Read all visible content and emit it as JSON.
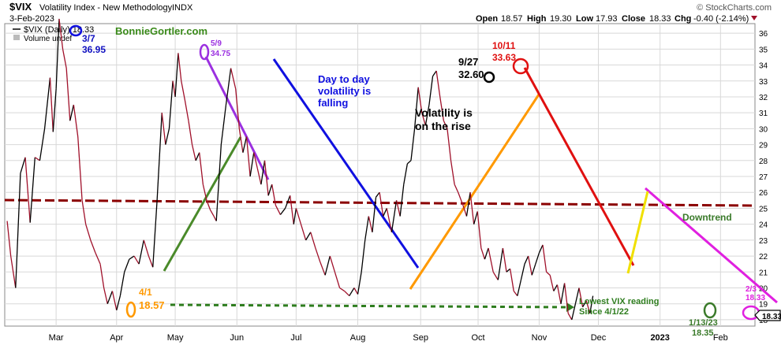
{
  "header": {
    "symbol": "$VIX",
    "name": "Volatility Index - New Methodology",
    "exchange": "INDX",
    "date": "3-Feb-2023",
    "watermark": "© StockCharts.com",
    "open_label": "Open",
    "open": "18.57",
    "high_label": "High",
    "high": "19.30",
    "low_label": "Low",
    "low": "17.93",
    "close_label": "Close",
    "close": "18.33",
    "chg_label": "Chg",
    "chg": "-0.40 (-2.14%)"
  },
  "legend": {
    "series": "$VIX (Daily) 18.33",
    "volume": "Volume undef"
  },
  "brand": "BonnieGortler.com",
  "colors": {
    "price_up": "#000000",
    "price_down": "#a0102a",
    "resistance": "#8b0000",
    "blue": "#1010e0",
    "red": "#e01010",
    "orange": "#ff9900",
    "green": "#4a8a2a",
    "purple": "#9b30e0",
    "magenta": "#e020e0",
    "yellow": "#f0e000",
    "dashed_green": "#2e7d1e"
  },
  "annotations": {
    "mar7_date": "3/7",
    "mar7_value": "36.95",
    "may9_date": "5/9",
    "may9_value": "34.75",
    "sep27_date": "9/27",
    "sep27_value": "32.60",
    "oct11_date": "10/11",
    "oct11_value": "33.63",
    "apr1_date": "4/1",
    "apr1_value": "18.57",
    "jan13_date": "1/13/23",
    "jan13_value": "18.35",
    "feb3_date": "2/3",
    "feb3_value": "18.33",
    "falling_line1": "Day to day",
    "falling_line2": "volatility is",
    "falling_line3": "falling",
    "rise_line1": "Volatility is",
    "rise_line2": "on the rise",
    "downtrend": "Downtrend",
    "lowest_line1": "Lowest VIX reading",
    "lowest_line2": "Since 4/1/22",
    "last_price": "18.33"
  },
  "chart_data": {
    "type": "line",
    "title": "$VIX Volatility Index - New Methodology INDX",
    "x_ticks": [
      "Mar",
      "Apr",
      "May",
      "Jun",
      "Jul",
      "Aug",
      "Sep",
      "Oct",
      "Nov",
      "Dec",
      "2023",
      "Feb"
    ],
    "x_tick_positions": [
      0.07,
      1.07,
      2.04,
      3.06,
      4.04,
      5.06,
      6.1,
      7.05,
      8.06,
      9.04,
      10.06,
      11.06
    ],
    "y_ticks": [
      18,
      19,
      20,
      21,
      22,
      23,
      24,
      25,
      26,
      27,
      28,
      29,
      30,
      31,
      32,
      33,
      34,
      35,
      36
    ],
    "ylim": [
      17.6,
      36.6
    ],
    "xlim": [
      -0.78,
      11.63
    ],
    "grid": true,
    "series": [
      {
        "name": "$VIX (Daily)",
        "points": [
          [
            -0.74,
            24.2
          ],
          [
            -0.68,
            22.0
          ],
          [
            -0.6,
            20.0
          ],
          [
            -0.52,
            27.2
          ],
          [
            -0.44,
            28.2
          ],
          [
            -0.36,
            24.1
          ],
          [
            -0.28,
            28.2
          ],
          [
            -0.2,
            28.0
          ],
          [
            -0.12,
            30.0
          ],
          [
            -0.03,
            33.2
          ],
          [
            0.02,
            29.8
          ],
          [
            0.07,
            32.5
          ],
          [
            0.12,
            36.9
          ],
          [
            0.18,
            35.0
          ],
          [
            0.24,
            33.8
          ],
          [
            0.3,
            30.5
          ],
          [
            0.36,
            31.5
          ],
          [
            0.43,
            29.5
          ],
          [
            0.5,
            25.5
          ],
          [
            0.56,
            24.0
          ],
          [
            0.64,
            23.0
          ],
          [
            0.72,
            22.2
          ],
          [
            0.8,
            21.5
          ],
          [
            0.86,
            20.0
          ],
          [
            0.92,
            19.0
          ],
          [
            1.0,
            19.8
          ],
          [
            1.07,
            18.6
          ],
          [
            1.13,
            19.5
          ],
          [
            1.2,
            21.0
          ],
          [
            1.28,
            21.8
          ],
          [
            1.36,
            22.0
          ],
          [
            1.44,
            21.5
          ],
          [
            1.52,
            23.0
          ],
          [
            1.6,
            22.0
          ],
          [
            1.67,
            21.3
          ],
          [
            1.74,
            25.5
          ],
          [
            1.82,
            31.0
          ],
          [
            1.88,
            29.0
          ],
          [
            1.94,
            30.0
          ],
          [
            2.0,
            33.0
          ],
          [
            2.04,
            32.0
          ],
          [
            2.09,
            34.75
          ],
          [
            2.14,
            33.0
          ],
          [
            2.2,
            31.8
          ],
          [
            2.26,
            30.5
          ],
          [
            2.32,
            29.0
          ],
          [
            2.38,
            28.0
          ],
          [
            2.44,
            28.5
          ],
          [
            2.5,
            26.5
          ],
          [
            2.56,
            25.5
          ],
          [
            2.62,
            24.9
          ],
          [
            2.68,
            24.5
          ],
          [
            2.72,
            24.2
          ],
          [
            2.8,
            29.0
          ],
          [
            2.88,
            31.5
          ],
          [
            2.96,
            33.8
          ],
          [
            3.04,
            32.5
          ],
          [
            3.1,
            30.0
          ],
          [
            3.16,
            28.5
          ],
          [
            3.22,
            29.5
          ],
          [
            3.28,
            27.0
          ],
          [
            3.34,
            28.5
          ],
          [
            3.4,
            27.5
          ],
          [
            3.46,
            26.5
          ],
          [
            3.52,
            28.0
          ],
          [
            3.58,
            25.8
          ],
          [
            3.64,
            26.5
          ],
          [
            3.7,
            25.2
          ],
          [
            3.78,
            24.6
          ],
          [
            3.86,
            25.0
          ],
          [
            3.94,
            25.8
          ],
          [
            4.0,
            24.0
          ],
          [
            4.04,
            25.0
          ],
          [
            4.12,
            24.0
          ],
          [
            4.2,
            23.0
          ],
          [
            4.28,
            23.5
          ],
          [
            4.36,
            22.5
          ],
          [
            4.44,
            21.6
          ],
          [
            4.52,
            20.8
          ],
          [
            4.6,
            22.0
          ],
          [
            4.68,
            21.0
          ],
          [
            4.76,
            20.0
          ],
          [
            4.84,
            19.8
          ],
          [
            4.92,
            19.5
          ],
          [
            5.0,
            20.0
          ],
          [
            5.06,
            19.6
          ],
          [
            5.12,
            21.0
          ],
          [
            5.18,
            23.0
          ],
          [
            5.24,
            24.5
          ],
          [
            5.3,
            23.5
          ],
          [
            5.36,
            25.7
          ],
          [
            5.42,
            26.0
          ],
          [
            5.48,
            24.5
          ],
          [
            5.54,
            25.0
          ],
          [
            5.62,
            23.5
          ],
          [
            5.7,
            25.5
          ],
          [
            5.76,
            24.5
          ],
          [
            5.82,
            26.5
          ],
          [
            5.88,
            27.8
          ],
          [
            5.94,
            28.0
          ],
          [
            6.0,
            30.0
          ],
          [
            6.06,
            32.6
          ],
          [
            6.12,
            31.0
          ],
          [
            6.18,
            30.2
          ],
          [
            6.24,
            31.5
          ],
          [
            6.3,
            33.3
          ],
          [
            6.36,
            33.63
          ],
          [
            6.42,
            32.0
          ],
          [
            6.48,
            30.5
          ],
          [
            6.54,
            30.0
          ],
          [
            6.6,
            28.0
          ],
          [
            6.66,
            26.5
          ],
          [
            6.72,
            26.0
          ],
          [
            6.8,
            25.2
          ],
          [
            6.86,
            24.5
          ],
          [
            6.92,
            26.0
          ],
          [
            6.98,
            24.0
          ],
          [
            7.04,
            24.8
          ],
          [
            7.1,
            22.5
          ],
          [
            7.16,
            21.8
          ],
          [
            7.22,
            22.5
          ],
          [
            7.3,
            21.0
          ],
          [
            7.38,
            20.5
          ],
          [
            7.46,
            22.5
          ],
          [
            7.52,
            21.0
          ],
          [
            7.58,
            21.2
          ],
          [
            7.64,
            19.8
          ],
          [
            7.7,
            19.5
          ],
          [
            7.76,
            20.5
          ],
          [
            7.82,
            21.5
          ],
          [
            7.88,
            22.0
          ],
          [
            7.94,
            20.8
          ],
          [
            8.0,
            21.5
          ],
          [
            8.06,
            22.2
          ],
          [
            8.12,
            22.7
          ],
          [
            8.18,
            21.0
          ],
          [
            8.24,
            20.8
          ],
          [
            8.3,
            19.8
          ],
          [
            8.36,
            20.2
          ],
          [
            8.42,
            19.0
          ],
          [
            8.48,
            20.3
          ],
          [
            8.54,
            18.4
          ],
          [
            8.6,
            18.0
          ],
          [
            8.66,
            19.0
          ],
          [
            8.72,
            20.0
          ],
          [
            8.78,
            18.8
          ],
          [
            8.84,
            19.2
          ],
          [
            8.9,
            18.4
          ],
          [
            8.95,
            19.5
          ]
        ]
      }
    ],
    "note": "x positions are in months from 1-Mar-2022; only the months shown on the axis are labeled"
  }
}
